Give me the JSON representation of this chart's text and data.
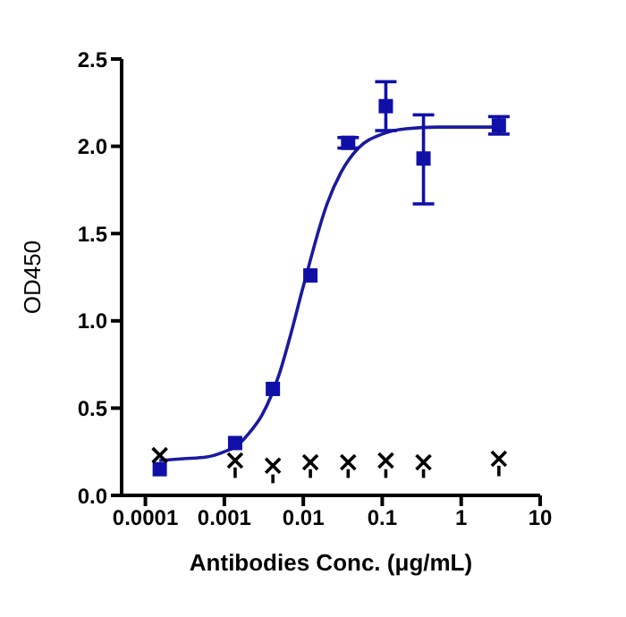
{
  "chart_data": {
    "type": "scatter",
    "xlabel": "Antibodies Conc. (μg/mL)",
    "ylabel": "OD450",
    "log": "x",
    "xlim": [
      5e-05,
      10
    ],
    "xticks": [
      0.0001,
      0.001,
      0.01,
      0.1,
      1,
      10
    ],
    "ylim": [
      0,
      2.5
    ],
    "yticks": [
      {
        "value": 0,
        "label": "0.0"
      },
      0.5,
      {
        "value": 1,
        "label": "1.0"
      },
      1.5,
      {
        "value": 2,
        "label": "2.0"
      },
      2.5
    ],
    "grid": false,
    "legend": false,
    "series": [
      {
        "type": "line",
        "color": "#1a1aa0",
        "marker": "none",
        "x": [
          0.00015,
          0.0003,
          0.0006,
          0.001,
          0.0015,
          0.002,
          0.003,
          0.004,
          0.005,
          0.007,
          0.0095,
          0.012,
          0.015,
          0.02,
          0.03,
          0.05,
          0.1,
          0.2,
          0.5,
          1,
          3
        ],
        "values": [
          0.2,
          0.21,
          0.22,
          0.25,
          0.29,
          0.35,
          0.46,
          0.58,
          0.7,
          0.93,
          1.16,
          1.33,
          1.49,
          1.67,
          1.85,
          1.99,
          2.07,
          2.1,
          2.11,
          2.11,
          2.11
        ]
      },
      {
        "color": "#1010a8",
        "marker": "square",
        "x": [
          0.000152,
          0.00137,
          0.00412,
          0.0123,
          0.037,
          0.111,
          0.333,
          3
        ],
        "values": [
          0.15,
          0.3,
          0.61,
          1.26,
          2.02,
          2.23,
          1.93,
          2.12
        ],
        "errors": [
          null,
          null,
          null,
          null,
          0.03,
          [
            2.09,
            2.37
          ],
          [
            1.67,
            2.18
          ],
          0.05
        ]
      },
      {
        "color": "#000000",
        "marker": "cross",
        "x": [
          0.000152,
          0.00137,
          0.00412,
          0.0123,
          0.037,
          0.111,
          0.333,
          3
        ],
        "values": [
          0.23,
          0.2,
          0.17,
          0.19,
          0.19,
          0.2,
          0.19,
          0.21
        ],
        "errors": [
          null,
          [
            0.1,
            0.16
          ],
          [
            0.07,
            0.12
          ],
          [
            0.1,
            0.15
          ],
          [
            0.1,
            0.15
          ],
          [
            0.1,
            0.15
          ],
          [
            0.1,
            0.15
          ],
          [
            0.11,
            0.17
          ]
        ]
      }
    ]
  }
}
